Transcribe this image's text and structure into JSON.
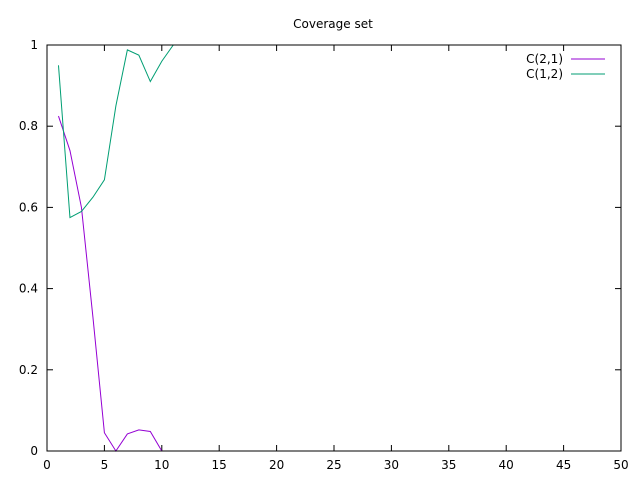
{
  "chart_data": {
    "type": "line",
    "title": "Coverage set",
    "xlabel": "",
    "ylabel": "",
    "xlim": [
      0,
      50
    ],
    "ylim": [
      0,
      1
    ],
    "xticks": [
      0,
      5,
      10,
      15,
      20,
      25,
      30,
      35,
      40,
      45,
      50
    ],
    "yticks": [
      0,
      0.2,
      0.4,
      0.6,
      0.8,
      1
    ],
    "xtick_labels": [
      "0",
      "5",
      "10",
      "15",
      "20",
      "25",
      "30",
      "35",
      "40",
      "45",
      "50"
    ],
    "ytick_labels": [
      "0",
      "0.2",
      "0.4",
      "0.6",
      "0.8",
      "1"
    ],
    "grid": false,
    "legend_position": "top-right",
    "series": [
      {
        "name": "C(2,1)",
        "color": "#9400d3",
        "x": [
          1,
          2,
          3,
          4,
          5,
          6,
          7,
          8,
          9,
          10,
          11,
          12,
          13,
          14,
          15,
          16,
          17,
          18,
          19,
          20,
          21,
          22,
          23,
          24,
          25,
          26,
          27,
          28,
          29,
          30,
          31,
          32,
          33,
          34,
          35,
          36,
          37,
          38,
          39,
          40,
          41,
          42,
          43,
          44,
          45,
          46,
          47,
          48,
          49,
          50
        ],
        "y": [
          0.825,
          0.74,
          0.6,
          0.33,
          0.045,
          0.0,
          0.042,
          0.052,
          0.048,
          0.0,
          0.0,
          0.0,
          0.0,
          0.0,
          0.0,
          0.0,
          0.0,
          0.0,
          0.0,
          0.0,
          0.0,
          0.0,
          0.0,
          0.0,
          0.0,
          0.0,
          0.0,
          0.0,
          0.0,
          0.0,
          0.0,
          0.0,
          0.0,
          0.0,
          0.0,
          0.0,
          0.0,
          0.0,
          0.0,
          0.0,
          0.0,
          0.0,
          0.0,
          0.0,
          0.0,
          0.0,
          0.0,
          0.0,
          0.0,
          0.0
        ]
      },
      {
        "name": "C(1,2)",
        "color": "#009e73",
        "x": [
          1,
          2,
          3,
          4,
          5,
          6,
          7,
          8,
          9,
          10,
          11,
          12,
          13,
          14,
          15,
          16,
          17,
          18,
          19,
          20,
          21,
          22,
          23,
          24,
          25,
          26,
          27,
          28,
          29,
          30,
          31,
          32,
          33,
          34,
          35,
          36,
          37,
          38,
          39,
          40,
          41,
          42,
          43,
          44,
          45,
          46,
          47,
          48,
          49,
          50
        ],
        "y": [
          0.95,
          0.575,
          0.59,
          0.625,
          0.668,
          0.85,
          0.988,
          0.975,
          0.91,
          0.96,
          1.0,
          1.0,
          1.0,
          1.0,
          1.0,
          1.0,
          1.0,
          1.0,
          1.0,
          1.0,
          1.0,
          1.0,
          1.0,
          1.0,
          1.0,
          1.0,
          1.0,
          1.0,
          1.0,
          1.0,
          1.0,
          1.0,
          1.0,
          1.0,
          1.0,
          1.0,
          1.0,
          1.0,
          1.0,
          1.0,
          1.0,
          1.0,
          1.0,
          1.0,
          1.0,
          1.0,
          1.0,
          1.0,
          1.0,
          1.0
        ]
      }
    ]
  }
}
